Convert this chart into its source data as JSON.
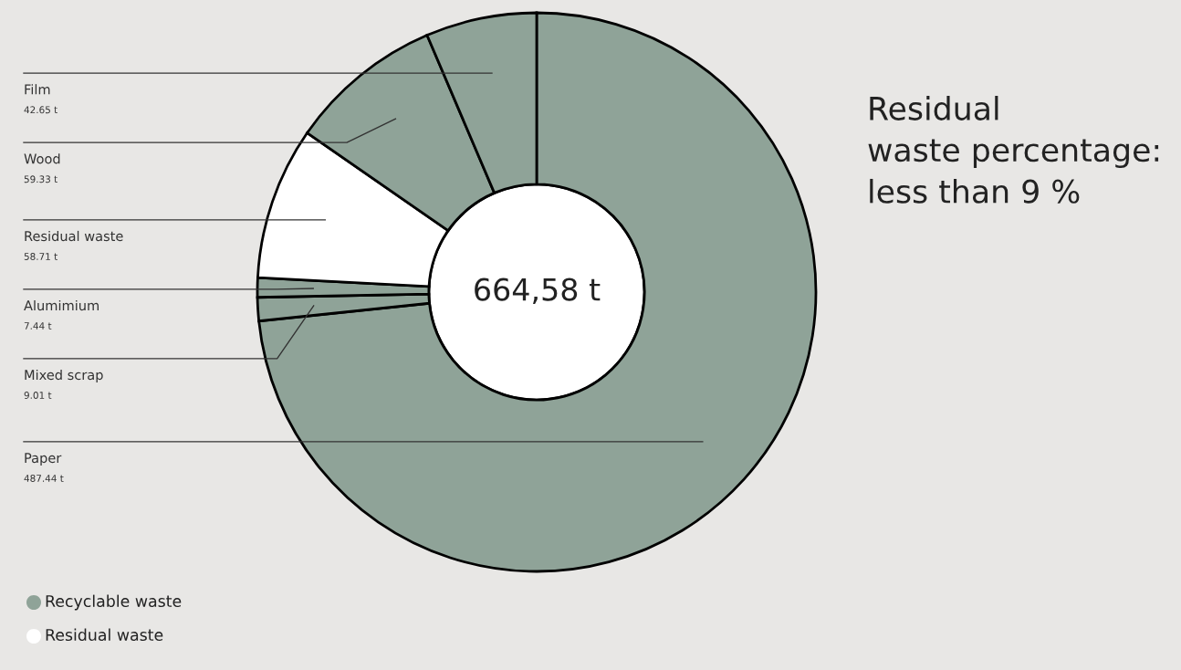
{
  "chart_data": {
    "type": "donut",
    "categories": [
      "Paper",
      "Mixed scrap",
      "Alumimium",
      "Residual waste",
      "Wood",
      "Film"
    ],
    "values": [
      487.44,
      9.01,
      7.44,
      58.71,
      59.33,
      42.65
    ],
    "colors": [
      "#8fa398",
      "#8fa398",
      "#8fa398",
      "#ffffff",
      "#8fa398",
      "#8fa398"
    ],
    "value_labels": [
      "487.44 t",
      "9.01 t",
      "7.44 t",
      "58.71 t",
      "59.33 t",
      "42.65 t"
    ],
    "annotations": [
      "664,58 t",
      "Residual\nwaste percentage:\nless than 9 %",
      "Recyclable waste",
      "Residual waste"
    ]
  }
}
